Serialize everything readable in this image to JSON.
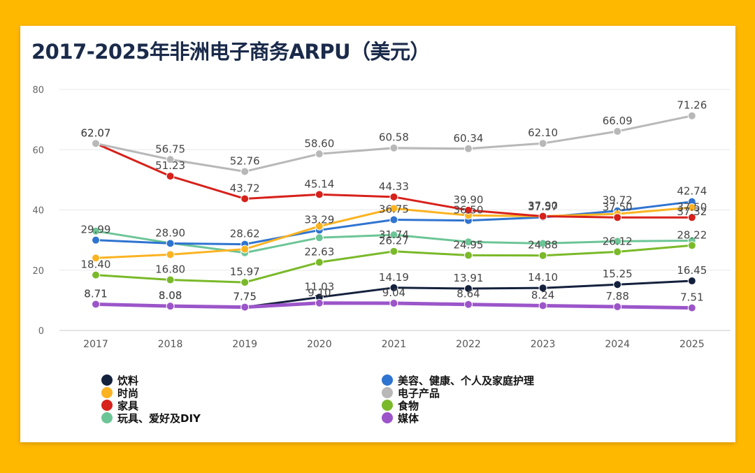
{
  "chart_data": {
    "type": "line",
    "title": "2017-2025年非洲电子商务ARPU（美元）",
    "xlabel": "",
    "ylabel": "",
    "ylim": [
      0,
      80
    ],
    "yticks": [
      0,
      20,
      40,
      60,
      80
    ],
    "grid": true,
    "legend_position": "bottom",
    "categories": [
      "2017",
      "2018",
      "2019",
      "2020",
      "2021",
      "2022",
      "2023",
      "2024",
      "2025"
    ],
    "series": [
      {
        "name": "饮料",
        "color": "#14213d",
        "values": [
          8.71,
          8.08,
          7.75,
          11.03,
          14.19,
          13.91,
          14.1,
          15.25,
          16.45
        ],
        "labeled": true
      },
      {
        "name": "美容、健康、个人及家庭护理",
        "color": "#2f74d0",
        "values": [
          29.99,
          28.9,
          28.62,
          33.29,
          36.75,
          36.5,
          37.57,
          39.72,
          42.74
        ],
        "labeled": true
      },
      {
        "name": "时尚",
        "color": "#fbb321",
        "values": [
          24.06,
          25.2,
          27.0,
          34.6,
          40.5,
          38.2,
          37.9,
          38.7,
          40.8
        ],
        "labeled": false
      },
      {
        "name": "电子产品",
        "color": "#b8b8b8",
        "values": [
          62.07,
          56.75,
          52.76,
          58.6,
          60.58,
          60.34,
          62.1,
          66.09,
          71.26
        ],
        "labeled": true
      },
      {
        "name": "家具",
        "color": "#d7211b",
        "values": [
          62.07,
          51.23,
          43.72,
          45.14,
          44.33,
          39.9,
          37.9,
          37.5,
          37.5
        ],
        "labeled": true
      },
      {
        "name": "食物",
        "color": "#7ab929",
        "values": [
          18.4,
          16.8,
          15.97,
          22.63,
          26.27,
          24.95,
          24.88,
          26.12,
          28.22
        ],
        "labeled": true
      },
      {
        "name": "玩具、爱好及DIY",
        "color": "#6cc596",
        "values": [
          33.0,
          29.0,
          25.8,
          30.8,
          31.74,
          29.4,
          28.9,
          29.6,
          29.8
        ],
        "labeled": false
      },
      {
        "name": "媒体",
        "color": "#9b55c9",
        "values": [
          8.71,
          8.08,
          7.75,
          9.1,
          9.04,
          8.64,
          8.24,
          7.88,
          7.51
        ],
        "labeled": true
      }
    ],
    "extra_labels": [
      {
        "value": 37.32,
        "text": "37.32"
      },
      {
        "value": 31.74,
        "text": "31.74"
      }
    ]
  }
}
